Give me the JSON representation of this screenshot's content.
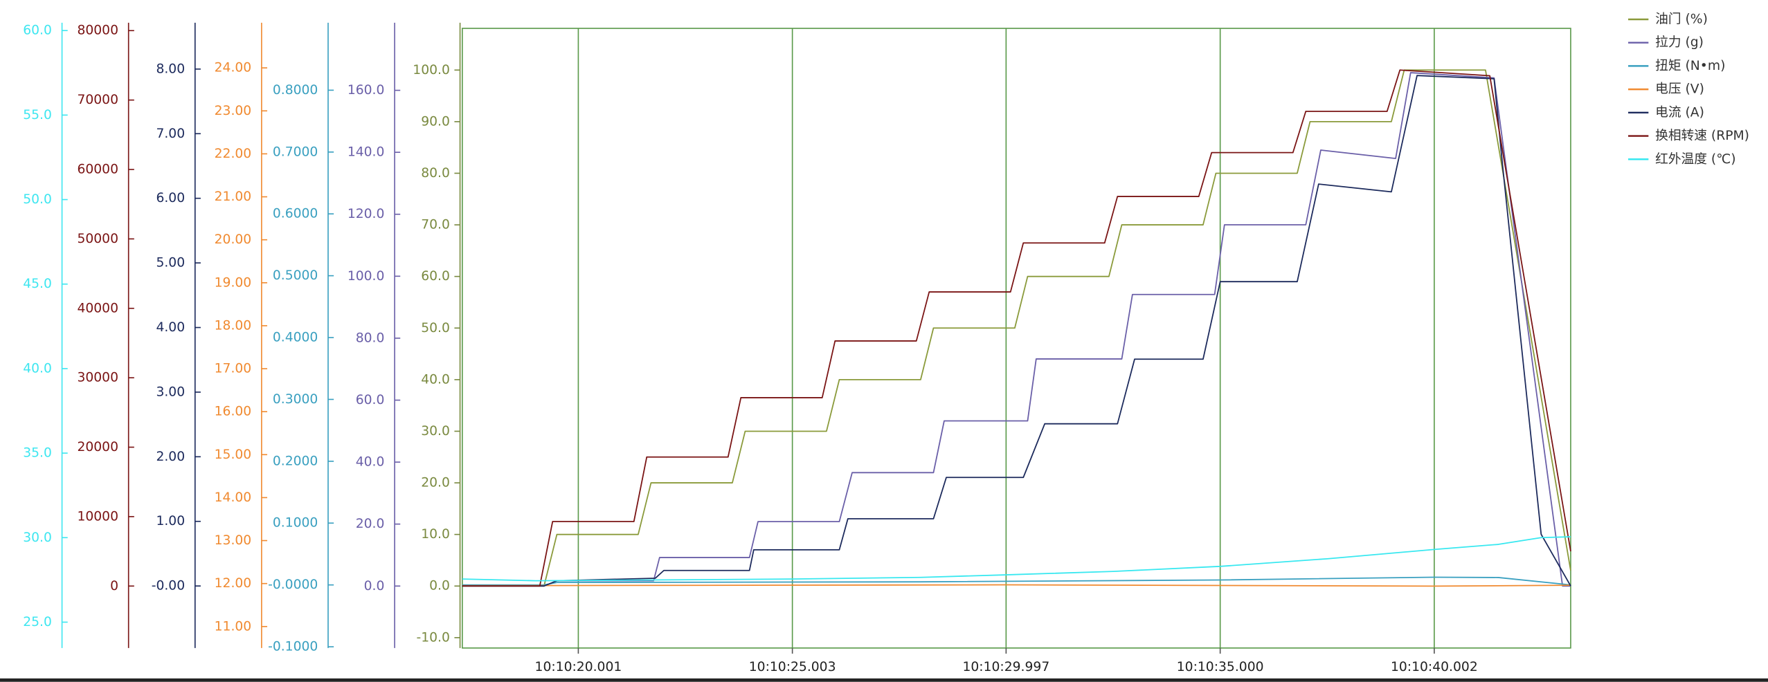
{
  "chart_data": {
    "type": "line",
    "xlim": [
      17.29,
      43.19
    ],
    "xticks": [
      {
        "value": 20.001,
        "label": "10:10:20.001"
      },
      {
        "value": 25.003,
        "label": "10:10:25.003"
      },
      {
        "value": 29.997,
        "label": "10:10:29.997"
      },
      {
        "value": 35.0,
        "label": "10:10:35.000"
      },
      {
        "value": 40.002,
        "label": "10:10:40.002"
      }
    ],
    "grid": true,
    "legend": "top-right",
    "y_axes": [
      {
        "color": "#3ee6f0",
        "ylim": [
          23.47,
          60.13
        ],
        "yticks": [
          {
            "value": 25,
            "label": "25.0"
          },
          {
            "value": 30,
            "label": "30.0"
          },
          {
            "value": 35,
            "label": "35.0"
          },
          {
            "value": 40,
            "label": "40.0"
          },
          {
            "value": 45,
            "label": "45.0"
          },
          {
            "value": 50,
            "label": "50.0"
          },
          {
            "value": 55,
            "label": "55.0"
          },
          {
            "value": 60,
            "label": "60.0"
          }
        ]
      },
      {
        "color": "#7a1414",
        "ylim": [
          -8925,
          80325
        ],
        "yticks": [
          0,
          10000,
          20000,
          30000,
          40000,
          50000,
          60000,
          70000,
          80000
        ]
      },
      {
        "color": "#1c2a5c",
        "ylim": [
          -0.96,
          8.63
        ],
        "yticks": [
          {
            "value": 0,
            "label": "-0.00"
          },
          {
            "value": 1,
            "label": "1.00"
          },
          {
            "value": 2,
            "label": "2.00"
          },
          {
            "value": 3,
            "label": "3.00"
          },
          {
            "value": 4,
            "label": "4.00"
          },
          {
            "value": 5,
            "label": "5.00"
          },
          {
            "value": 6,
            "label": "6.00"
          },
          {
            "value": 7,
            "label": "7.00"
          },
          {
            "value": 8,
            "label": "8.00"
          }
        ]
      },
      {
        "color": "#f08a30",
        "ylim": [
          10.5,
          24.92
        ],
        "yticks": [
          {
            "value": 11,
            "label": "11.00"
          },
          {
            "value": 12,
            "label": "12.00"
          },
          {
            "value": 13,
            "label": "13.00"
          },
          {
            "value": 14,
            "label": "14.00"
          },
          {
            "value": 15,
            "label": "15.00"
          },
          {
            "value": 16,
            "label": "16.00"
          },
          {
            "value": 17,
            "label": "17.00"
          },
          {
            "value": 18,
            "label": "18.00"
          },
          {
            "value": 19,
            "label": "19.00"
          },
          {
            "value": 20,
            "label": "20.00"
          },
          {
            "value": 21,
            "label": "21.00"
          },
          {
            "value": 22,
            "label": "22.00"
          },
          {
            "value": 23,
            "label": "23.00"
          },
          {
            "value": 24,
            "label": "24.00"
          }
        ]
      },
      {
        "color": "#3aa0c0",
        "ylim": [
          -0.102,
          0.9
        ],
        "yticks": [
          {
            "value": -0.1,
            "label": "-0.1000"
          },
          {
            "value": 0,
            "label": "-0.0000"
          },
          {
            "value": 0.1,
            "label": "0.1000"
          },
          {
            "value": 0.2,
            "label": "0.2000"
          },
          {
            "value": 0.3,
            "label": "0.3000"
          },
          {
            "value": 0.4,
            "label": "0.4000"
          },
          {
            "value": 0.5,
            "label": "0.5000"
          },
          {
            "value": 0.6,
            "label": "0.6000"
          },
          {
            "value": 0.7,
            "label": "0.7000"
          },
          {
            "value": 0.8,
            "label": "0.8000"
          }
        ]
      },
      {
        "color": "#6a5fa8",
        "ylim": [
          -20,
          180
        ],
        "yticks": [
          {
            "value": 0,
            "label": "0.0"
          },
          {
            "value": 20,
            "label": "20.0"
          },
          {
            "value": 40,
            "label": "40.0"
          },
          {
            "value": 60,
            "label": "60.0"
          },
          {
            "value": 80,
            "label": "80.0"
          },
          {
            "value": 100,
            "label": "100.0"
          },
          {
            "value": 120,
            "label": "120.0"
          },
          {
            "value": 140,
            "label": "140.0"
          },
          {
            "value": 160,
            "label": "160.0"
          }
        ]
      },
      {
        "color": "#7a8a40",
        "ylim": [
          -12.01,
          108.08
        ],
        "yticks": [
          {
            "value": -10,
            "label": "-10.0"
          },
          {
            "value": 0,
            "label": "0.0"
          },
          {
            "value": 10,
            "label": "10.0"
          },
          {
            "value": 20,
            "label": "20.0"
          },
          {
            "value": 30,
            "label": "30.0"
          },
          {
            "value": 40,
            "label": "40.0"
          },
          {
            "value": 50,
            "label": "50.0"
          },
          {
            "value": 60,
            "label": "60.0"
          },
          {
            "value": 70,
            "label": "70.0"
          },
          {
            "value": 80,
            "label": "80.0"
          },
          {
            "value": 90,
            "label": "90.0"
          },
          {
            "value": 100,
            "label": "100.0"
          }
        ]
      }
    ],
    "series": [
      {
        "name": "油门 (%)",
        "color": "#8a9a3a",
        "axis": 6,
        "x": [
          17.29,
          19.2,
          19.5,
          21.4,
          21.7,
          23.6,
          23.9,
          25.8,
          26.1,
          28.0,
          28.3,
          30.2,
          30.5,
          32.4,
          32.7,
          34.6,
          34.9,
          36.8,
          37.1,
          39.0,
          39.3,
          41.2,
          43.19
        ],
        "values": [
          0,
          0,
          10,
          10,
          20,
          20,
          30,
          30,
          40,
          40,
          50,
          50,
          60,
          60,
          70,
          70,
          80,
          80,
          90,
          90,
          100,
          100,
          3
        ]
      },
      {
        "name": "拉力 (g)",
        "color": "#6a5fa8",
        "axis": 5,
        "x": [
          17.29,
          19.2,
          19.5,
          21.76,
          21.9,
          24.0,
          24.2,
          26.1,
          26.4,
          28.3,
          28.55,
          30.5,
          30.7,
          32.7,
          32.95,
          34.87,
          35.1,
          37.0,
          37.35,
          39.1,
          39.45,
          41.4,
          43.0,
          43.19
        ],
        "values": [
          0,
          0,
          1.7,
          1.7,
          9.2,
          9.2,
          20.8,
          20.8,
          36.6,
          36.6,
          53.3,
          53.3,
          73.3,
          73.3,
          94.1,
          94.1,
          116.6,
          116.6,
          140.7,
          138,
          165.7,
          164,
          0,
          0
        ]
      },
      {
        "name": "扭矩 (N•m)",
        "color": "#3aa0c0",
        "axis": 4,
        "x": [
          17.29,
          19.2,
          19.5,
          28.0,
          35.0,
          40.0,
          41.5,
          43.19
        ],
        "values": [
          0,
          0,
          0.004,
          0.005,
          0.008,
          0.0125,
          0.012,
          0
        ]
      },
      {
        "name": "电压 (V)",
        "color": "#f08a30",
        "axis": 3,
        "x": [
          17.29,
          30.0,
          40.0,
          43.19
        ],
        "values": [
          11.95,
          11.97,
          11.94,
          11.96
        ]
      },
      {
        "name": "电流 (A)",
        "color": "#1c2a5c",
        "axis": 2,
        "x": [
          17.29,
          19.2,
          19.5,
          21.8,
          22.0,
          24.0,
          24.1,
          26.1,
          26.3,
          28.3,
          28.6,
          30.4,
          30.9,
          32.6,
          33.0,
          34.6,
          35.0,
          36.8,
          37.3,
          39.0,
          39.6,
          41.4,
          41.6,
          42.5,
          43.19
        ],
        "values": [
          0,
          0,
          0.08,
          0.12,
          0.24,
          0.24,
          0.56,
          0.56,
          1.04,
          1.04,
          1.68,
          1.68,
          2.51,
          2.51,
          3.51,
          3.51,
          4.71,
          4.71,
          6.22,
          6.1,
          7.9,
          7.85,
          6.5,
          0.8,
          0
        ]
      },
      {
        "name": "换相转速 (RPM)",
        "color": "#7a1414",
        "axis": 1,
        "x": [
          17.29,
          19.1,
          19.4,
          21.3,
          21.6,
          23.5,
          23.8,
          25.7,
          26.0,
          27.9,
          28.2,
          30.1,
          30.4,
          32.3,
          32.6,
          34.5,
          34.8,
          36.7,
          37.0,
          38.9,
          39.2,
          41.3,
          43.19
        ],
        "values": [
          0,
          0,
          9290,
          9290,
          18580,
          18580,
          27130,
          27130,
          35300,
          35300,
          42360,
          42360,
          49420,
          49420,
          56110,
          56110,
          62430,
          62430,
          68370,
          68370,
          74320,
          73500,
          5000
        ]
      },
      {
        "name": "红外温度 (℃)",
        "color": "#38e8f0",
        "axis": 0,
        "x": [
          17.29,
          19.0,
          22.0,
          25.0,
          28.0,
          30.0,
          32.5,
          35.0,
          37.5,
          40.0,
          41.5,
          42.5,
          43.19
        ],
        "values": [
          27.55,
          27.45,
          27.5,
          27.55,
          27.65,
          27.8,
          28.0,
          28.3,
          28.75,
          29.3,
          29.6,
          30.0,
          30.05
        ]
      }
    ]
  }
}
